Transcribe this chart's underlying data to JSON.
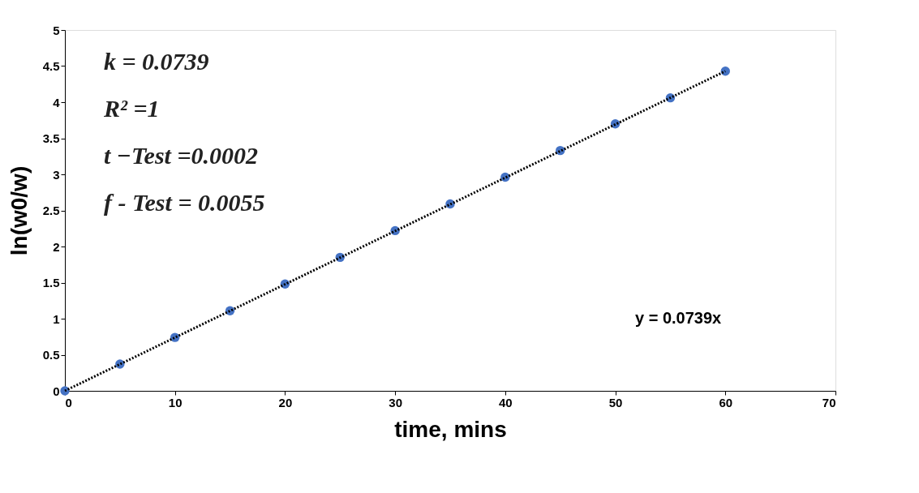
{
  "chart_data": {
    "type": "scatter",
    "xlabel": "time, mins",
    "ylabel": "ln(w0/w)",
    "x": [
      0,
      5,
      10,
      15,
      20,
      25,
      30,
      35,
      40,
      45,
      50,
      55,
      60
    ],
    "series": [
      {
        "color": "#4472c4",
        "marker": "circle",
        "values": [
          0,
          0.37,
          0.74,
          1.11,
          1.48,
          1.85,
          2.22,
          2.59,
          2.96,
          3.33,
          3.7,
          4.06,
          4.43
        ]
      },
      {
        "type": "line",
        "color": "#000000",
        "line_style": "dotted",
        "marker": "none",
        "x": [
          0,
          60
        ],
        "values": [
          0,
          4.43
        ]
      }
    ],
    "annotations": [
      "k = 0.0739",
      "R² =1",
      "t −Test =0.0002",
      "f - Test = 0.0055",
      "y = 0.0739x"
    ],
    "xlim": [
      0,
      70
    ],
    "xticks": [
      0,
      10,
      20,
      30,
      40,
      50,
      60,
      70
    ],
    "ylim": [
      0,
      5
    ],
    "yticks": [
      0,
      0.5,
      1,
      1.5,
      2,
      2.5,
      3,
      3.5,
      4,
      4.5,
      5
    ],
    "grid": false
  }
}
